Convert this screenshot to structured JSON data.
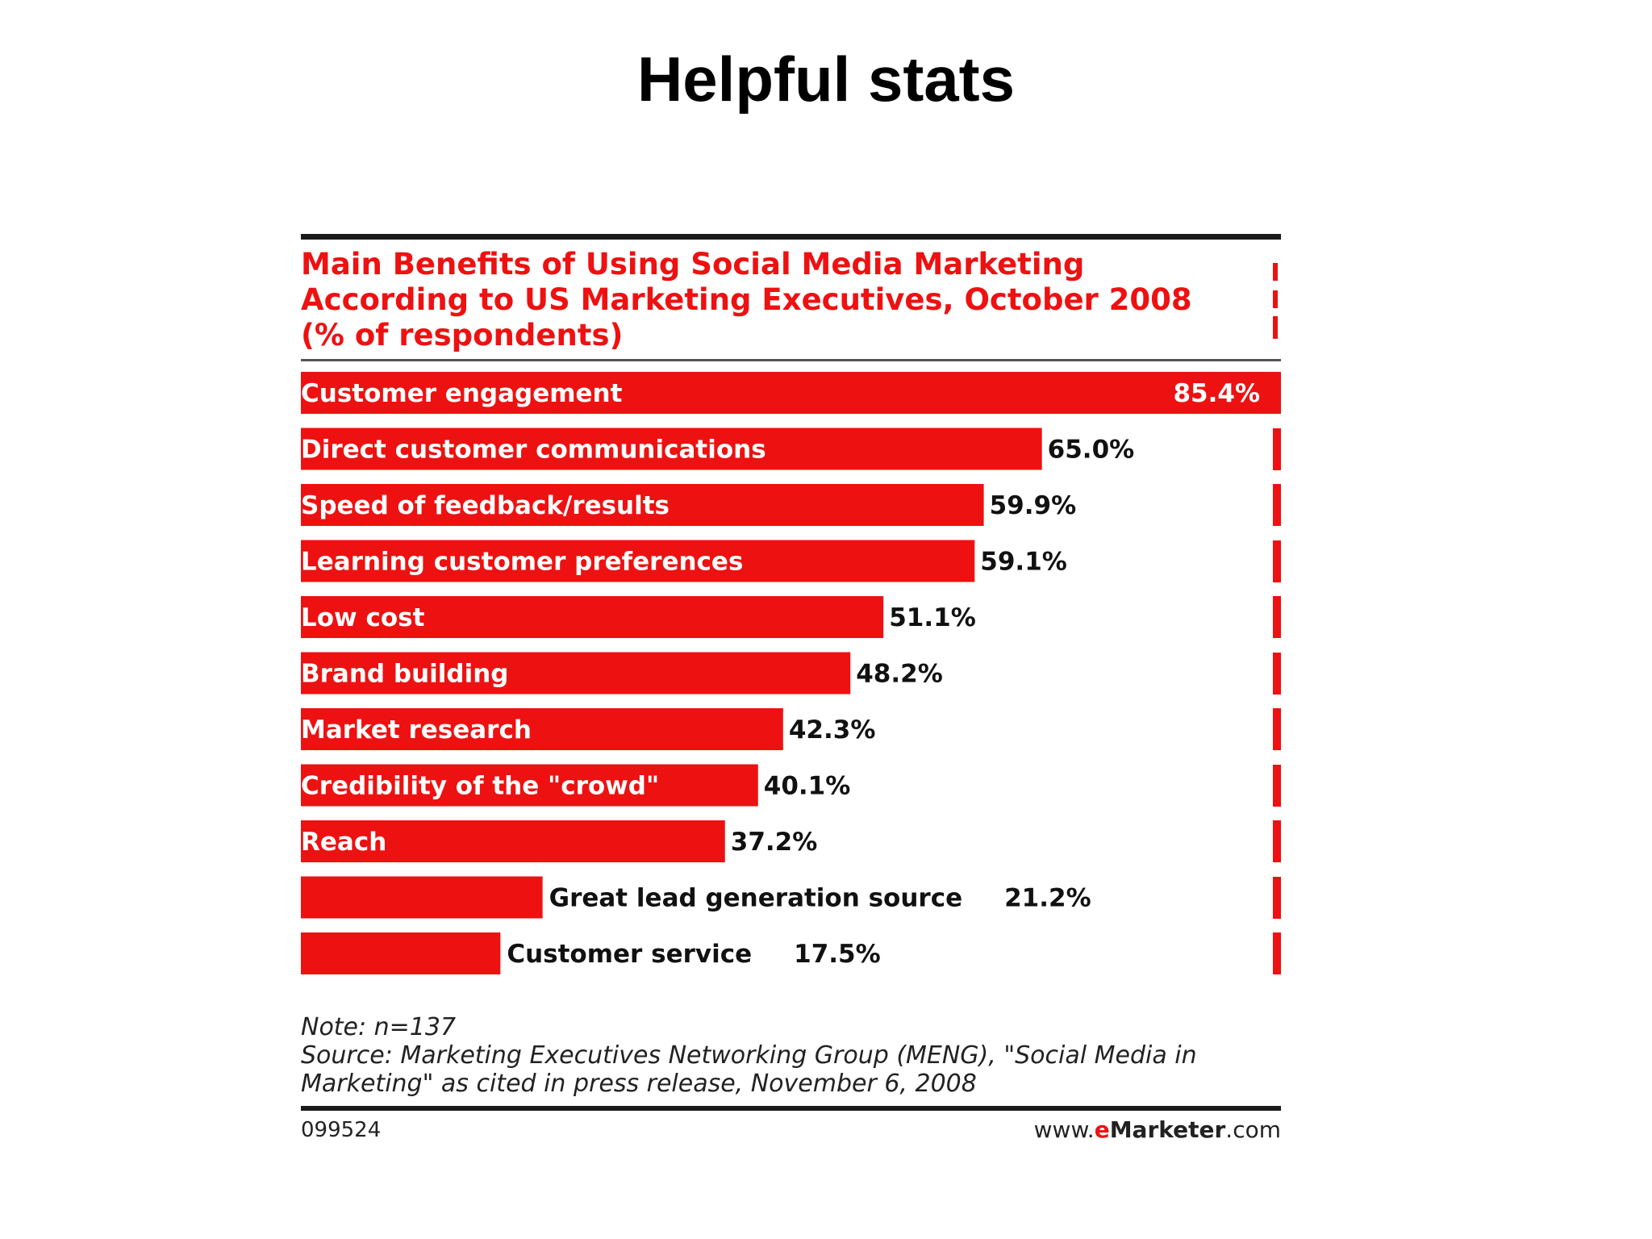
{
  "slide": {
    "title": "Helpful stats"
  },
  "colors": {
    "bar": "#ee1111",
    "title": "#ee1111",
    "label_on_bar": "#ffffff",
    "label_off_bar": "#111111"
  },
  "chart_data": {
    "type": "bar",
    "orientation": "horizontal",
    "title_lines": [
      "Main Benefits of Using Social Media Marketing",
      "According to US Marketing Executives, October 2008",
      "(% of respondents)"
    ],
    "categories": [
      "Customer engagement",
      "Direct customer communications",
      "Speed of feedback/results",
      "Learning customer preferences",
      "Low cost",
      "Brand building",
      "Market research",
      "Credibility of the \"crowd\"",
      "Reach",
      "Great lead generation source",
      "Customer service"
    ],
    "values": [
      85.4,
      65.0,
      59.9,
      59.1,
      51.1,
      48.2,
      42.3,
      40.1,
      37.2,
      21.2,
      17.5
    ],
    "value_labels": [
      "85.4%",
      "65.0%",
      "59.9%",
      "59.1%",
      "51.1%",
      "48.2%",
      "42.3%",
      "40.1%",
      "37.2%",
      "21.2%",
      "17.5%"
    ],
    "xlim": [
      0,
      85.4
    ],
    "xlabel": "",
    "ylabel": "",
    "grid": false,
    "legend": "none"
  },
  "footer": {
    "note": "Note: n=137",
    "source_line1": "Source: Marketing Executives Networking Group (MENG), \"Social Media in",
    "source_line2": "Marketing\" as cited in press release, November 6, 2008",
    "chart_id": "099524",
    "brand_prefix": "www.",
    "brand_e": "e",
    "brand_name": "Marketer",
    "brand_suffix": ".com"
  }
}
